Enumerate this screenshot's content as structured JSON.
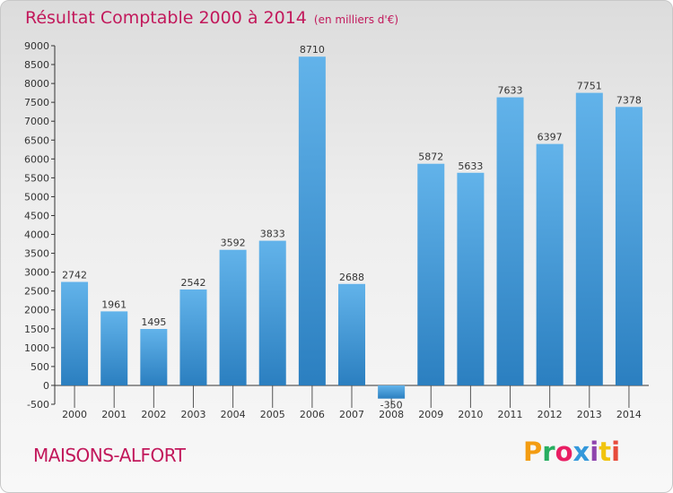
{
  "header": {
    "title": "Résultat Comptable 2000 à 2014",
    "subtitle": "(en milliers d'€)"
  },
  "footer": {
    "commune": "MAISONS-ALFORT",
    "logo_text": "Proxiti"
  },
  "colors": {
    "title": "#c2185b",
    "bar_light": "#62b3ea",
    "bar_dark": "#2b7fc0",
    "logo": [
      "#f39c12",
      "#27ae60",
      "#e91e63",
      "#3498db",
      "#8e44ad",
      "#f1c40f",
      "#e74c3c"
    ]
  },
  "chart_data": {
    "type": "bar",
    "categories": [
      "2000",
      "2001",
      "2002",
      "2003",
      "2004",
      "2005",
      "2006",
      "2007",
      "2008",
      "2009",
      "2010",
      "2011",
      "2012",
      "2013",
      "2014"
    ],
    "values": [
      2742,
      1961,
      1495,
      2542,
      3592,
      3833,
      8710,
      2688,
      -350,
      5872,
      5633,
      7633,
      6397,
      7751,
      7378
    ],
    "value_labels": [
      "2742",
      "1961",
      "1495",
      "2542",
      "3592",
      "3833",
      "8710",
      "2688",
      "-350",
      "5872",
      "5633",
      "7633",
      "6397",
      "7751",
      "7378"
    ],
    "title": "Résultat Comptable 2000 à 2014",
    "xlabel": "",
    "ylabel": "",
    "ylim": [
      -500,
      9000
    ],
    "yticks": [
      -500,
      0,
      500,
      1000,
      1500,
      2000,
      2500,
      3000,
      3500,
      4000,
      4500,
      5000,
      5500,
      6000,
      6500,
      7000,
      7500,
      8000,
      8500,
      9000
    ],
    "ytick_labels": [
      "-500",
      "0",
      "500",
      "1000",
      "1500",
      "2000",
      "2500",
      "3000",
      "3500",
      "4000",
      "4500",
      "5000",
      "5500",
      "6000",
      "6500",
      "7000",
      "7500",
      "8000",
      "8500",
      "9000"
    ],
    "grid": false,
    "legend": "none"
  }
}
